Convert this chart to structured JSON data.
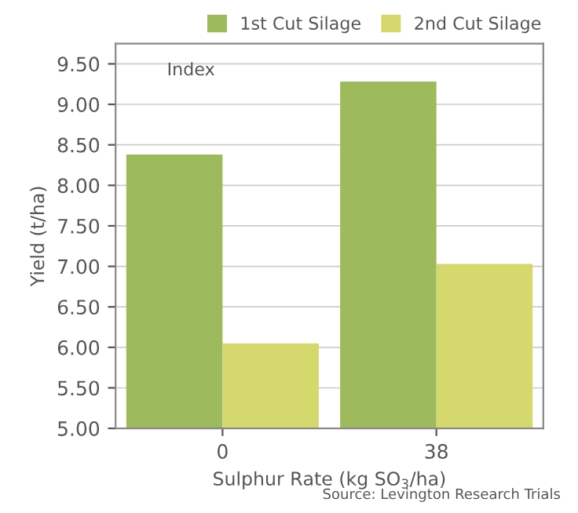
{
  "chart_data": {
    "type": "bar",
    "categories": [
      "0",
      "38"
    ],
    "series": [
      {
        "name": "1st Cut Silage",
        "color": "#9dba5c",
        "values": [
          8.38,
          9.28
        ]
      },
      {
        "name": "2nd Cut Silage",
        "color": "#d5d86c",
        "values": [
          6.05,
          7.03
        ]
      }
    ],
    "xlabel": "Sulphur Rate (kg SO$_{3}$/ha)",
    "ylabel": "Yield (t/ha)",
    "ylim": [
      5.0,
      9.75
    ],
    "yticks": [
      {
        "value": 5.0,
        "label": "5.00"
      },
      {
        "value": 5.5,
        "label": "5.50"
      },
      {
        "value": 6.0,
        "label": "6.00"
      },
      {
        "value": 6.5,
        "label": "6.50"
      },
      {
        "value": 7.0,
        "label": "7.00"
      },
      {
        "value": 7.5,
        "label": "7.50"
      },
      {
        "value": 8.0,
        "label": "8.00"
      },
      {
        "value": 8.5,
        "label": "8.50"
      },
      {
        "value": 9.0,
        "label": "9.00"
      },
      {
        "value": 9.5,
        "label": "9.50"
      }
    ],
    "annotations": [
      "Index",
      "Source: Levington Research Trials"
    ],
    "grid": "y",
    "legend": "top right"
  }
}
